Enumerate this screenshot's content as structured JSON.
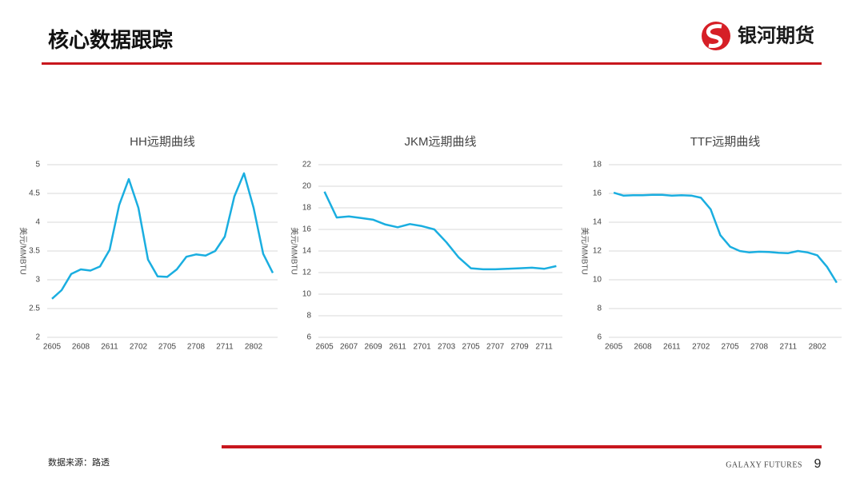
{
  "header": {
    "title": "核心数据跟踪",
    "brand": "银河期货"
  },
  "footer": {
    "source": "数据来源：路透",
    "company": "GALAXY FUTURES",
    "page": "9"
  },
  "chart_data": [
    {
      "type": "line",
      "title": "HH远期曲线",
      "y_label": "美元/MMBTU",
      "color": "#1aaee0",
      "grid": true,
      "categories": [
        "2605",
        null,
        null,
        "2608",
        null,
        null,
        "2611",
        null,
        null,
        "2702",
        null,
        null,
        "2705",
        null,
        null,
        "2708",
        null,
        null,
        "2711",
        null,
        null,
        "2802",
        null,
        null
      ],
      "values": [
        2.67,
        2.82,
        3.1,
        3.18,
        3.16,
        3.23,
        3.52,
        4.3,
        4.75,
        4.25,
        3.35,
        3.06,
        3.05,
        3.18,
        3.4,
        3.44,
        3.42,
        3.5,
        3.75,
        4.45,
        4.85,
        4.25,
        3.45,
        3.12
      ],
      "ylim": [
        2,
        5
      ],
      "yticks": [
        2,
        2.5,
        3,
        3.5,
        4,
        4.5,
        5
      ]
    },
    {
      "type": "line",
      "title": "JKM远期曲线",
      "y_label": "美元/MMBTU",
      "color": "#1aaee0",
      "grid": true,
      "categories": [
        "2605",
        null,
        "2607",
        null,
        "2609",
        null,
        "2611",
        null,
        "2701",
        null,
        "2703",
        null,
        "2705",
        null,
        "2707",
        null,
        "2709",
        null,
        "2711",
        null
      ],
      "values": [
        19.5,
        17.1,
        17.2,
        17.05,
        16.9,
        16.45,
        16.2,
        16.5,
        16.3,
        16.0,
        14.8,
        13.4,
        12.4,
        12.3,
        12.3,
        12.35,
        12.4,
        12.45,
        12.35,
        12.6
      ],
      "ylim": [
        6,
        22
      ],
      "yticks": [
        6,
        8,
        10,
        12,
        14,
        16,
        18,
        20,
        22
      ]
    },
    {
      "type": "line",
      "title": "TTF远期曲线",
      "y_label": "美元/MMBTU",
      "color": "#1aaee0",
      "grid": true,
      "categories": [
        "2605",
        null,
        null,
        "2608",
        null,
        null,
        "2611",
        null,
        null,
        "2702",
        null,
        null,
        "2705",
        null,
        null,
        "2708",
        null,
        null,
        "2711",
        null,
        null,
        "2802",
        null,
        null
      ],
      "values": [
        16.05,
        15.85,
        15.87,
        15.87,
        15.9,
        15.9,
        15.85,
        15.87,
        15.85,
        15.7,
        14.9,
        13.1,
        12.3,
        12.0,
        11.9,
        11.95,
        11.93,
        11.88,
        11.85,
        12.0,
        11.9,
        11.7,
        10.9,
        9.8
      ],
      "ylim": [
        6,
        18
      ],
      "yticks": [
        6,
        8,
        10,
        12,
        14,
        16,
        18
      ]
    }
  ]
}
